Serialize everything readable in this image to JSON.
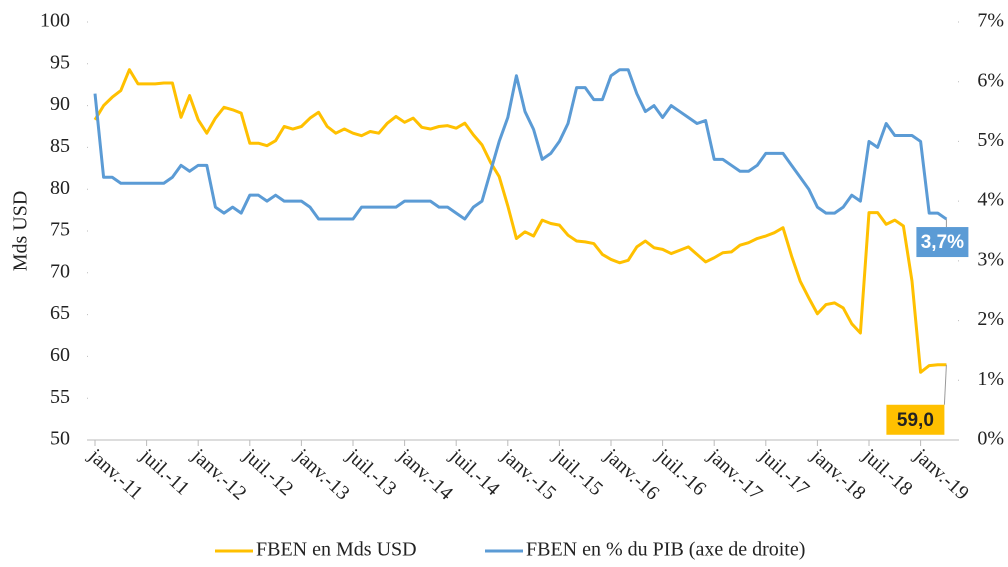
{
  "chart_data": {
    "type": "line",
    "y_label": "Mds USD",
    "categories": [
      "janv.-11",
      null,
      null,
      null,
      null,
      null,
      "juil.-11",
      null,
      null,
      null,
      null,
      null,
      "janv.-12",
      null,
      null,
      null,
      null,
      null,
      "juil.-12",
      null,
      null,
      null,
      null,
      null,
      "janv.-13",
      null,
      null,
      null,
      null,
      null,
      "juil.-13",
      null,
      null,
      null,
      null,
      null,
      "janv.-14",
      null,
      null,
      null,
      null,
      null,
      "juil.-14",
      null,
      null,
      null,
      null,
      null,
      "janv.-15",
      null,
      null,
      null,
      null,
      null,
      "juil.-15",
      null,
      null,
      null,
      null,
      null,
      "janv.-16",
      null,
      null,
      null,
      null,
      null,
      "juil.-16",
      null,
      null,
      null,
      null,
      null,
      "janv.-17",
      null,
      null,
      null,
      null,
      null,
      "juil.-17",
      null,
      null,
      null,
      null,
      null,
      "janv.-18",
      null,
      null,
      null,
      null,
      null,
      "juil.-18",
      null,
      null,
      null,
      null,
      null,
      "janv.-19",
      null,
      null,
      null
    ],
    "series": [
      {
        "name": "FBEN en Mds USD",
        "color": "#FFC000",
        "values": [
          88.3,
          90.0,
          91.0,
          91.8,
          94.3,
          92.6,
          92.6,
          92.6,
          92.7,
          92.7,
          88.6,
          91.2,
          88.3,
          86.7,
          88.5,
          89.8,
          89.5,
          89.1,
          85.5,
          85.5,
          85.2,
          85.8,
          87.5,
          87.2,
          87.5,
          88.5,
          89.2,
          87.5,
          86.7,
          87.2,
          86.7,
          86.4,
          86.9,
          86.7,
          87.9,
          88.7,
          88.0,
          88.5,
          87.4,
          87.2,
          87.5,
          87.6,
          87.3,
          87.9,
          86.5,
          85.3,
          83.2,
          81.5,
          78.0,
          74.1,
          74.9,
          74.4,
          76.3,
          75.9,
          75.7,
          74.5,
          73.8,
          73.7,
          73.5,
          72.2,
          71.6,
          71.2,
          71.5,
          73.1,
          73.8,
          73.0,
          72.8,
          72.3,
          72.7,
          73.1,
          72.2,
          71.3,
          71.8,
          72.4,
          72.5,
          73.3,
          73.6,
          74.1,
          74.4,
          74.8,
          75.4,
          72.0,
          69.0,
          67.0,
          65.1,
          66.2,
          66.4,
          65.8,
          63.9,
          62.8,
          77.2,
          77.2,
          75.8,
          76.3,
          75.6,
          69.0,
          58.1,
          58.9,
          59.0,
          59.0
        ],
        "value_labels": [
          null,
          null,
          null,
          null,
          null,
          null,
          null,
          null,
          null,
          null,
          null,
          null,
          null,
          null,
          null,
          null,
          null,
          null,
          null,
          null,
          null,
          null,
          null,
          null,
          null,
          null,
          null,
          null,
          null,
          null,
          null,
          null,
          null,
          null,
          null,
          null,
          null,
          null,
          null,
          null,
          null,
          null,
          null,
          null,
          null,
          null,
          null,
          null,
          null,
          null,
          null,
          null,
          null,
          null,
          null,
          null,
          null,
          null,
          null,
          null,
          null,
          null,
          null,
          null,
          null,
          null,
          null,
          null,
          null,
          null,
          null,
          null,
          null,
          null,
          null,
          null,
          null,
          null,
          null,
          null,
          null,
          null,
          null,
          null,
          null,
          null,
          null,
          null,
          null,
          null,
          null,
          null,
          null,
          null,
          null,
          null,
          null,
          null,
          null,
          "59,0"
        ]
      },
      {
        "name": "FBEN en % du PIB (axe de droite)",
        "color": "#5B9BD5",
        "axis": "y2",
        "values": [
          5.8,
          4.4,
          4.4,
          4.3,
          4.3,
          4.3,
          4.3,
          4.3,
          4.3,
          4.4,
          4.6,
          4.5,
          4.6,
          4.6,
          3.9,
          3.8,
          3.9,
          3.8,
          4.1,
          4.1,
          4.0,
          4.1,
          4.0,
          4.0,
          4.0,
          3.9,
          3.7,
          3.7,
          3.7,
          3.7,
          3.7,
          3.9,
          3.9,
          3.9,
          3.9,
          3.9,
          4.0,
          4.0,
          4.0,
          4.0,
          3.9,
          3.9,
          3.8,
          3.7,
          3.9,
          4.0,
          4.5,
          5.0,
          5.4,
          6.1,
          5.5,
          5.2,
          4.7,
          4.8,
          5.0,
          5.3,
          5.9,
          5.9,
          5.7,
          5.7,
          6.1,
          6.2,
          6.2,
          5.8,
          5.5,
          5.6,
          5.4,
          5.6,
          5.5,
          5.4,
          5.3,
          5.35,
          4.7,
          4.7,
          4.6,
          4.5,
          4.5,
          4.6,
          4.8,
          4.8,
          4.8,
          4.6,
          4.4,
          4.2,
          3.9,
          3.8,
          3.8,
          3.9,
          4.1,
          4.0,
          5.0,
          4.9,
          5.3,
          5.1,
          5.1,
          5.1,
          5.0,
          3.8,
          3.8,
          3.7
        ],
        "value_labels": [
          null,
          null,
          null,
          null,
          null,
          null,
          null,
          null,
          null,
          null,
          null,
          null,
          null,
          null,
          null,
          null,
          null,
          null,
          null,
          null,
          null,
          null,
          null,
          null,
          null,
          null,
          null,
          null,
          null,
          null,
          null,
          null,
          null,
          null,
          null,
          null,
          null,
          null,
          null,
          null,
          null,
          null,
          null,
          null,
          null,
          null,
          null,
          null,
          null,
          null,
          null,
          null,
          null,
          null,
          null,
          null,
          null,
          null,
          null,
          null,
          null,
          null,
          null,
          null,
          null,
          null,
          null,
          null,
          null,
          null,
          null,
          null,
          null,
          null,
          null,
          null,
          null,
          null,
          null,
          null,
          null,
          null,
          null,
          null,
          null,
          null,
          null,
          null,
          null,
          null,
          null,
          null,
          null,
          null,
          null,
          null,
          null,
          null,
          null,
          "3,7%"
        ]
      }
    ],
    "ylim": [
      50,
      100
    ],
    "yticks": [
      50,
      55,
      60,
      65,
      70,
      75,
      80,
      85,
      90,
      95,
      100
    ],
    "y2lim": [
      0,
      7
    ],
    "y2ticks": [
      {
        "value": 0,
        "label": "0%"
      },
      {
        "value": 1,
        "label": "1%"
      },
      {
        "value": 2,
        "label": "2%"
      },
      {
        "value": 3,
        "label": "3%"
      },
      {
        "value": 4,
        "label": "4%"
      },
      {
        "value": 5,
        "label": "5%"
      },
      {
        "value": 6,
        "label": "6%"
      },
      {
        "value": 7,
        "label": "7%"
      }
    ],
    "legend": "bottom"
  }
}
